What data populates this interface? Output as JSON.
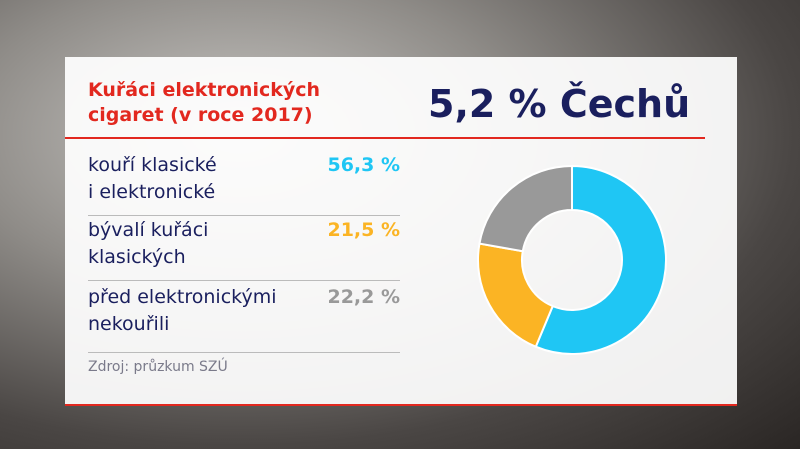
{
  "chart_data": {
    "type": "donut",
    "title": "Kuřáci elektronických\ncigaret (v roce 2017)",
    "headline": "5,2 % Čechů",
    "categories": [
      "kouří klasické\ni elektronické",
      "bývalí kuřáci\nklasických",
      "před elektronickými\nnekouřili"
    ],
    "values": [
      56.3,
      21.5,
      22.2
    ],
    "value_labels": [
      "56,3 %",
      "21,5 %",
      "22,2 %"
    ],
    "colors": [
      "#1fc6f4",
      "#fbb424",
      "#999999"
    ],
    "source": "Zdroj: průzkum SZÚ"
  }
}
